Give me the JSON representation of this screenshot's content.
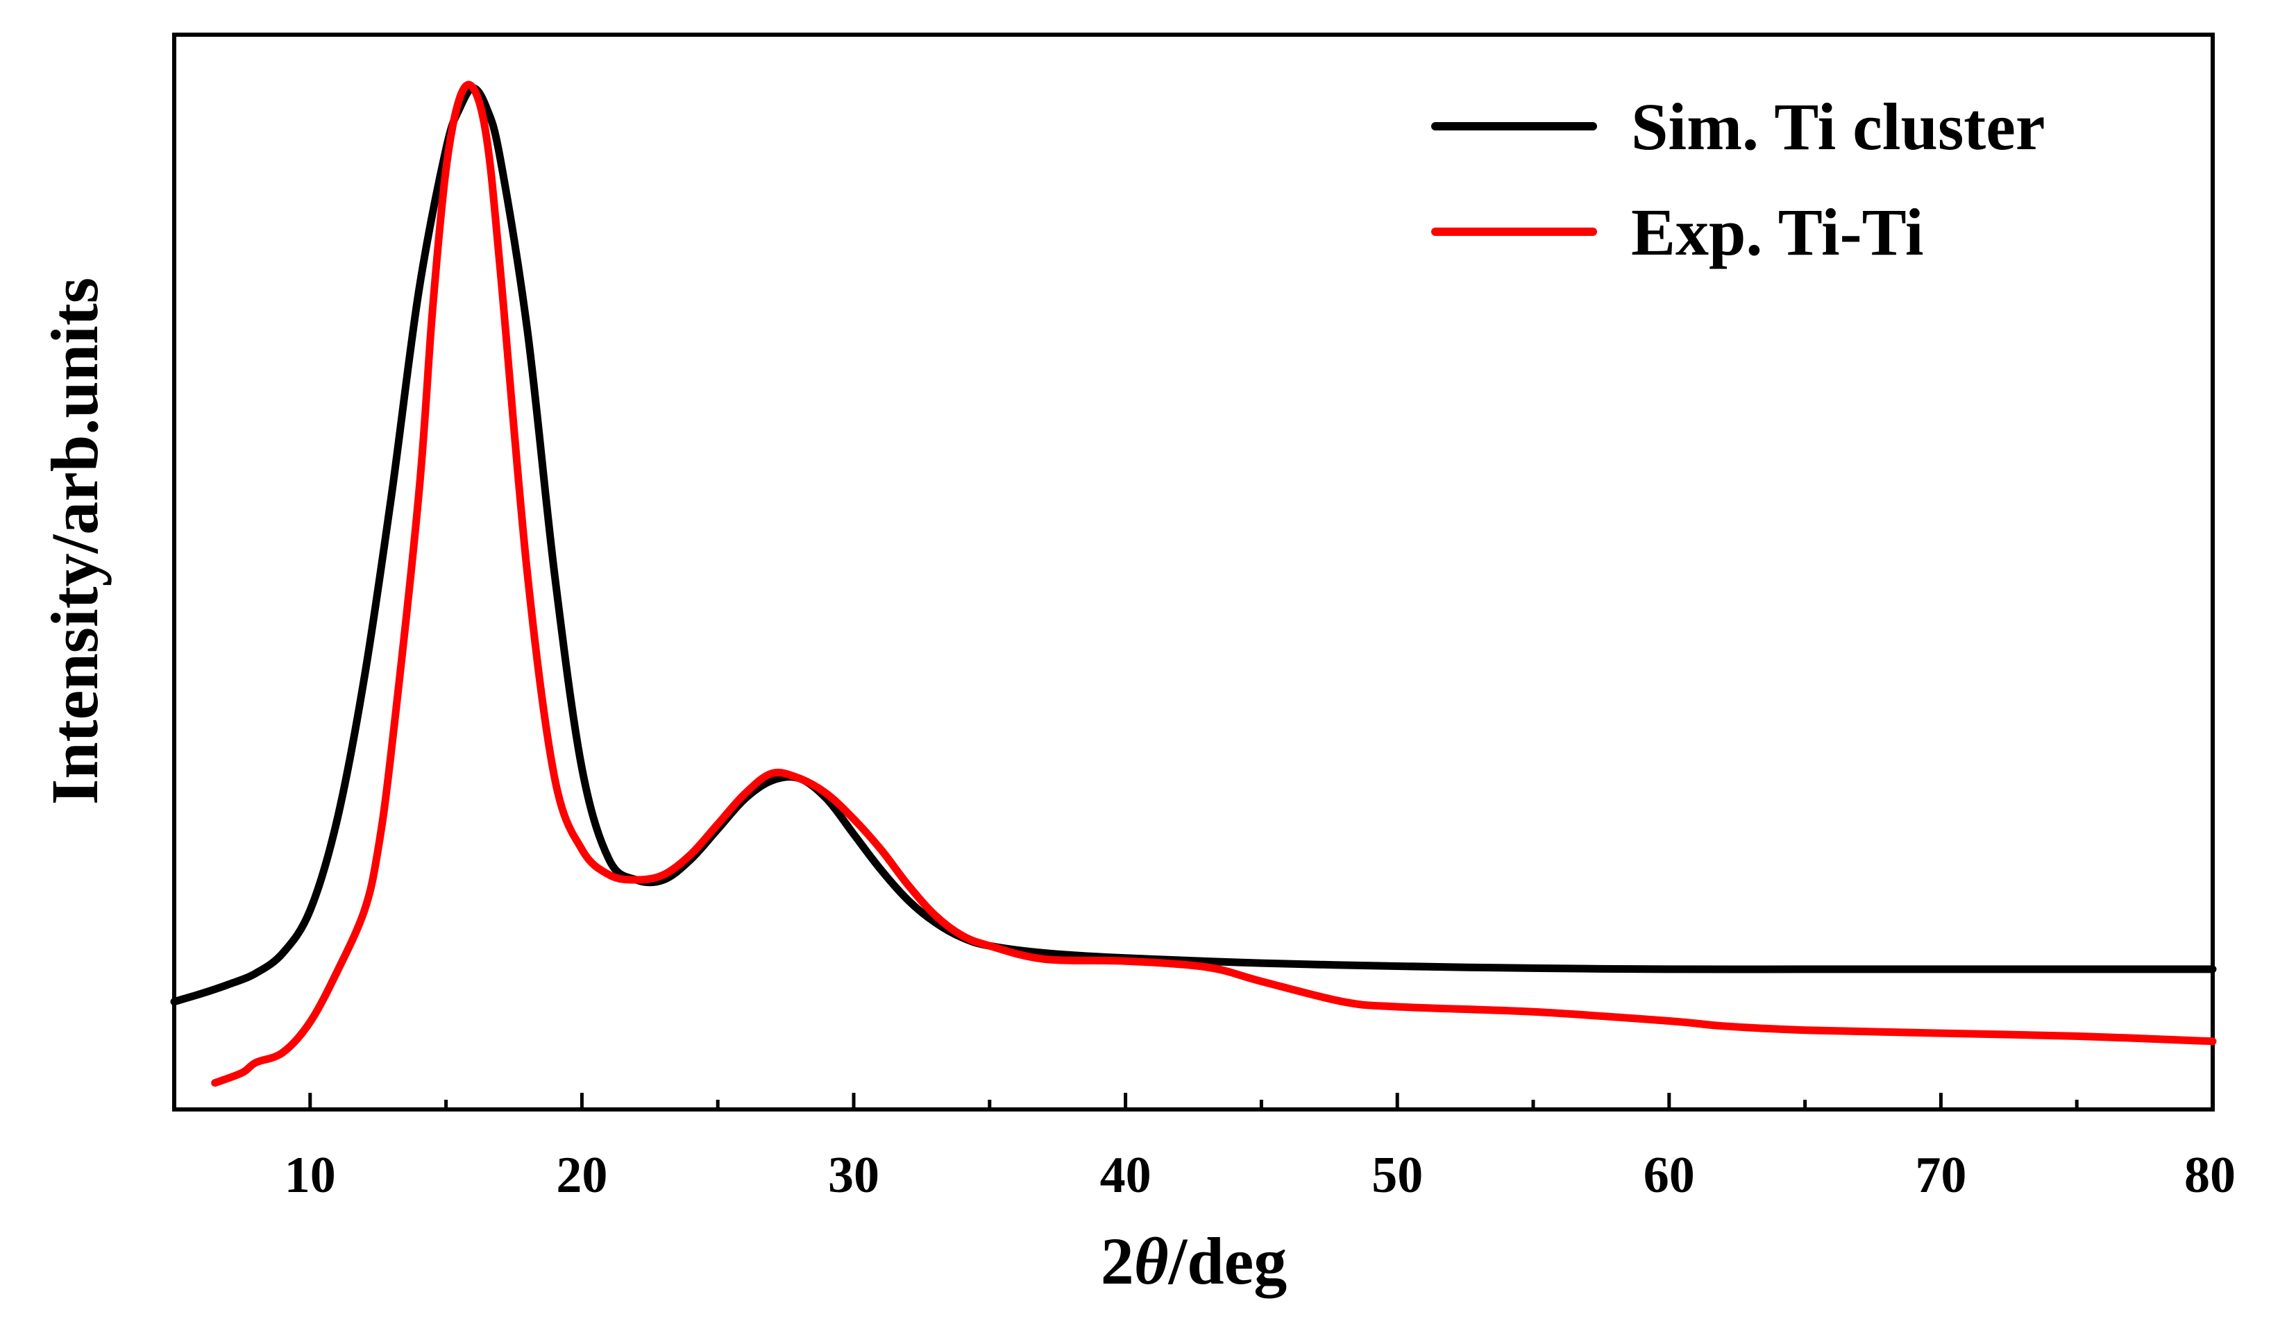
{
  "chart_data": {
    "type": "line",
    "title": "",
    "xlabel_parts": [
      "2",
      "θ",
      "/deg"
    ],
    "ylabel": "Intensity/arb.units",
    "xlim": [
      5,
      80
    ],
    "ylim": [
      0,
      1
    ],
    "x_ticks": [
      10,
      20,
      30,
      40,
      50,
      60,
      70,
      80
    ],
    "x_tick_labels": [
      "10",
      "20",
      "30",
      "40",
      "50",
      "60",
      "70",
      "80"
    ],
    "x_minor_ticks": [
      15,
      25,
      35,
      45,
      55,
      65,
      75
    ],
    "y_ticks": [],
    "grid": false,
    "legend_position": "top-right",
    "series": [
      {
        "name": "Sim. Ti cluster",
        "color": "#000000",
        "x": [
          5,
          6,
          7,
          8,
          9,
          10,
          11,
          12,
          13,
          14,
          15,
          15.5,
          16,
          16.5,
          17,
          18,
          19,
          20,
          21,
          22,
          23,
          24,
          25,
          26,
          27,
          28,
          29,
          30,
          31,
          32,
          33,
          34,
          35,
          37,
          40,
          45,
          50,
          55,
          60,
          65,
          70,
          75,
          80
        ],
        "y": [
          0.1,
          0.108,
          0.117,
          0.128,
          0.148,
          0.19,
          0.28,
          0.42,
          0.6,
          0.8,
          0.94,
          0.98,
          1.0,
          0.98,
          0.93,
          0.76,
          0.52,
          0.33,
          0.24,
          0.22,
          0.22,
          0.24,
          0.27,
          0.3,
          0.318,
          0.32,
          0.3,
          0.265,
          0.23,
          0.2,
          0.178,
          0.163,
          0.155,
          0.148,
          0.143,
          0.138,
          0.135,
          0.133,
          0.132,
          0.132,
          0.132,
          0.132,
          0.132
        ]
      },
      {
        "name": "Exp. Ti-Ti",
        "color": "#ff0000",
        "x": [
          6.5,
          7.5,
          8,
          9,
          10,
          11,
          12,
          12.5,
          13,
          14,
          14.5,
          15,
          15.5,
          16,
          16.5,
          17,
          18,
          19,
          20,
          21,
          22,
          23,
          24,
          25,
          26,
          27,
          28,
          29,
          30,
          31,
          32,
          33,
          34,
          35,
          37,
          40,
          43,
          45,
          48,
          50,
          55,
          60,
          62,
          65,
          70,
          75,
          80
        ],
        "y": [
          0.02,
          0.03,
          0.04,
          0.05,
          0.08,
          0.13,
          0.19,
          0.25,
          0.35,
          0.6,
          0.78,
          0.92,
          0.99,
          1.0,
          0.95,
          0.82,
          0.52,
          0.32,
          0.25,
          0.225,
          0.22,
          0.225,
          0.245,
          0.275,
          0.305,
          0.325,
          0.32,
          0.305,
          0.28,
          0.25,
          0.215,
          0.185,
          0.165,
          0.155,
          0.142,
          0.14,
          0.134,
          0.12,
          0.1,
          0.095,
          0.09,
          0.081,
          0.076,
          0.072,
          0.069,
          0.066,
          0.061
        ]
      }
    ]
  }
}
